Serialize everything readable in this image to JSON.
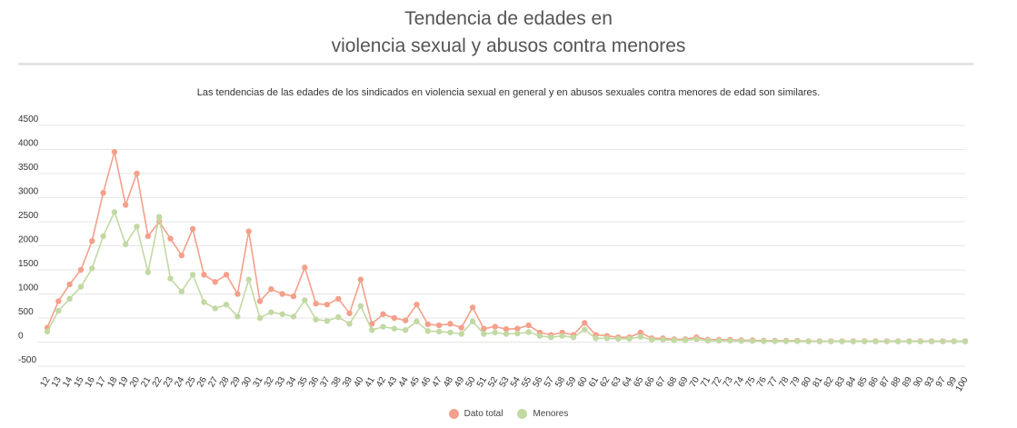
{
  "header": {
    "title_line1": "Tendencia de edades en",
    "title_line2": "violencia sexual y abusos contra menores",
    "subtitle": "Las tendencias de las edades de los sindicados en violencia sexual en general y en abusos sexuales contra menores de edad son similares."
  },
  "colors": {
    "total": "#f4a08a",
    "menores": "#c2d9a3",
    "grid": "#e6e6e6"
  },
  "chart_data": {
    "type": "line",
    "title": "",
    "xlabel": "",
    "ylabel": "",
    "ylim": [
      -500,
      4500
    ],
    "yticks": [
      -500,
      0,
      500,
      1000,
      1500,
      2000,
      2500,
      3000,
      3500,
      4000,
      4500
    ],
    "grid": true,
    "legend_position": "bottom",
    "categories": [
      "12",
      "13",
      "14",
      "15",
      "16",
      "17",
      "18",
      "19",
      "20",
      "21",
      "22",
      "23",
      "24",
      "25",
      "26",
      "27",
      "28",
      "29",
      "30",
      "31",
      "32",
      "33",
      "34",
      "35",
      "36",
      "37",
      "38",
      "39",
      "40",
      "41",
      "42",
      "43",
      "44",
      "45",
      "46",
      "47",
      "48",
      "49",
      "50",
      "51",
      "52",
      "53",
      "54",
      "55",
      "56",
      "57",
      "58",
      "59",
      "60",
      "61",
      "62",
      "63",
      "64",
      "65",
      "66",
      "67",
      "68",
      "69",
      "70",
      "71",
      "72",
      "73",
      "74",
      "75",
      "76",
      "77",
      "78",
      "79",
      "80",
      "81",
      "82",
      "83",
      "84",
      "85",
      "86",
      "87",
      "88",
      "89",
      "90",
      "93",
      "97",
      "99",
      "100"
    ],
    "series": [
      {
        "name": "Dato total",
        "values": [
          300,
          850,
          1200,
          1500,
          2100,
          3100,
          3950,
          2850,
          3500,
          2200,
          2500,
          2150,
          1800,
          2350,
          1400,
          1250,
          1400,
          1000,
          2300,
          850,
          1100,
          1000,
          950,
          1550,
          800,
          780,
          900,
          600,
          1300,
          380,
          580,
          500,
          450,
          780,
          370,
          350,
          380,
          300,
          720,
          280,
          320,
          270,
          280,
          350,
          200,
          150,
          200,
          150,
          400,
          150,
          130,
          100,
          100,
          200,
          80,
          80,
          60,
          60,
          100,
          50,
          50,
          50,
          40,
          40,
          30,
          30,
          30,
          30,
          20,
          20,
          20,
          20,
          20,
          20,
          20,
          20,
          20,
          20,
          20,
          20,
          20,
          20,
          20
        ]
      },
      {
        "name": "Menores",
        "values": [
          220,
          650,
          900,
          1150,
          1530,
          2200,
          2700,
          2030,
          2400,
          1450,
          2600,
          1320,
          1050,
          1400,
          830,
          700,
          780,
          530,
          1300,
          500,
          620,
          580,
          530,
          870,
          470,
          440,
          520,
          380,
          750,
          250,
          320,
          280,
          250,
          430,
          230,
          220,
          200,
          170,
          430,
          170,
          200,
          170,
          180,
          210,
          130,
          100,
          130,
          100,
          260,
          80,
          80,
          70,
          70,
          110,
          50,
          50,
          40,
          40,
          60,
          30,
          30,
          30,
          25,
          25,
          20,
          20,
          20,
          20,
          15,
          15,
          15,
          15,
          15,
          15,
          15,
          15,
          15,
          15,
          15,
          15,
          15,
          15,
          15
        ]
      }
    ]
  }
}
